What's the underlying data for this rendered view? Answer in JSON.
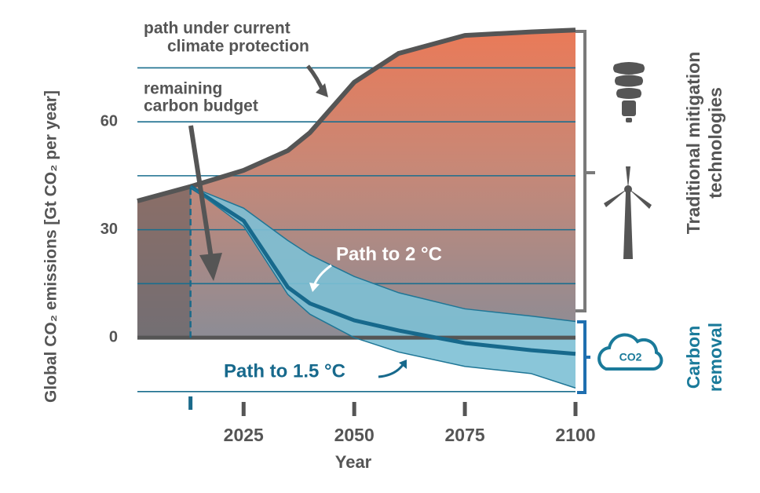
{
  "chart_data": {
    "type": "area-line",
    "x_label": "Year",
    "y_label": "Global CO₂ emissions [Gt CO₂ per year]",
    "x": [
      2001,
      2013,
      2025,
      2035,
      2040,
      2050,
      2060,
      2075,
      2090,
      2100
    ],
    "series": [
      {
        "color": "#555555",
        "values": [
          38,
          42,
          46.5,
          52,
          57,
          71,
          79,
          84,
          85,
          85.5
        ]
      },
      {
        "color": "#1f7696",
        "values": [
          null,
          42,
          36,
          27,
          23,
          17,
          12.5,
          8,
          6,
          4.5
        ]
      },
      {
        "color": "#17698c",
        "values": [
          null,
          42,
          32.5,
          14,
          9.5,
          4.8,
          2,
          -1.5,
          -3.5,
          -4.5
        ]
      },
      {
        "color": "#1f7696",
        "values": [
          null,
          42,
          31,
          12,
          6.5,
          0,
          -4,
          -8,
          -10,
          -14
        ]
      }
    ],
    "xlim": [
      2001,
      2100
    ],
    "ylim": [
      -17,
      86
    ],
    "xticks": [
      2025,
      2050,
      2075,
      2100
    ],
    "yticks": [
      0,
      30,
      60
    ],
    "ygrid": [
      -15,
      0,
      15,
      30,
      45,
      60,
      75
    ],
    "annotations": {
      "current_path": [
        "path under current",
        "climate protection"
      ],
      "budget": [
        "remaining",
        "carbon budget"
      ],
      "two_degrees": "Path to 2 °C",
      "one_five_degrees": "Path to 1.5 °C",
      "traditional": [
        "Traditional mitigation",
        "technologies"
      ],
      "removal": [
        "Carbon",
        "removal"
      ],
      "cloud": "CO2"
    }
  }
}
